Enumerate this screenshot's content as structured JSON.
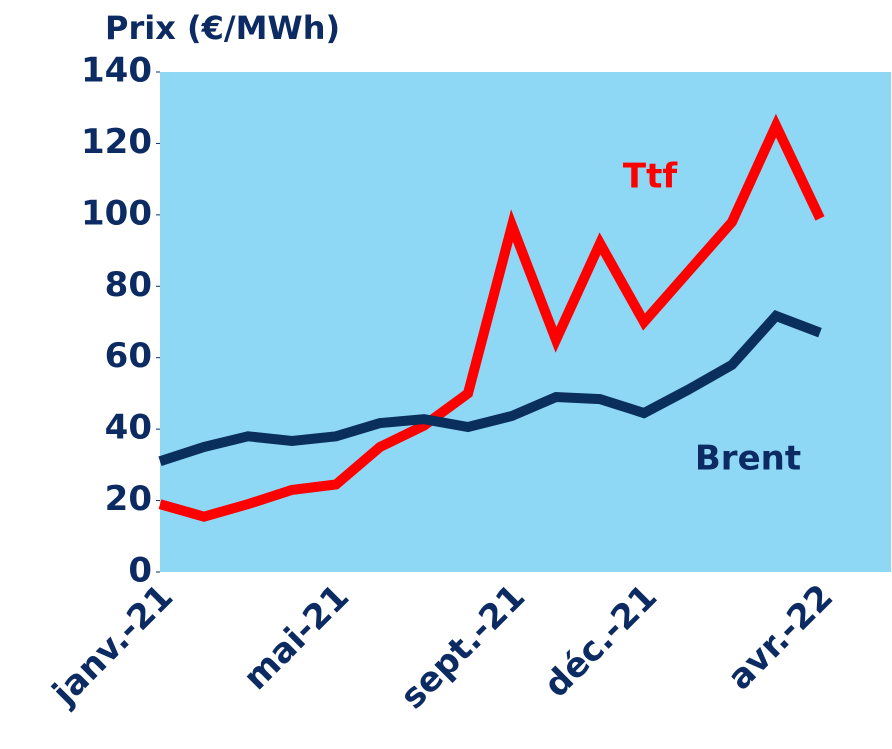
{
  "chart_data": {
    "type": "line",
    "title": "Prix (€/MWh)",
    "categories": [
      "janv.-21",
      null,
      null,
      null,
      "mai-21",
      null,
      null,
      null,
      "sept.-21",
      null,
      null,
      "déc.-21",
      null,
      null,
      null,
      "avr.-22"
    ],
    "series": [
      {
        "name": "Ttf",
        "color": "#ff0000",
        "values": [
          19,
          15.5,
          19,
          23,
          24.5,
          35,
          41,
          50,
          97,
          65,
          92,
          70,
          84,
          98,
          125,
          99
        ]
      },
      {
        "name": "Brent",
        "color": "#0a2f5c",
        "values": [
          31,
          35,
          38,
          36.7,
          38,
          41.7,
          42.8,
          40.6,
          43.7,
          49,
          48.4,
          44.5,
          51,
          58,
          71.7,
          67
        ]
      }
    ],
    "ylim": [
      0,
      140
    ],
    "yticks": [
      0,
      20,
      40,
      60,
      80,
      100,
      120,
      140
    ],
    "plot_background": "#8fd8f5"
  }
}
